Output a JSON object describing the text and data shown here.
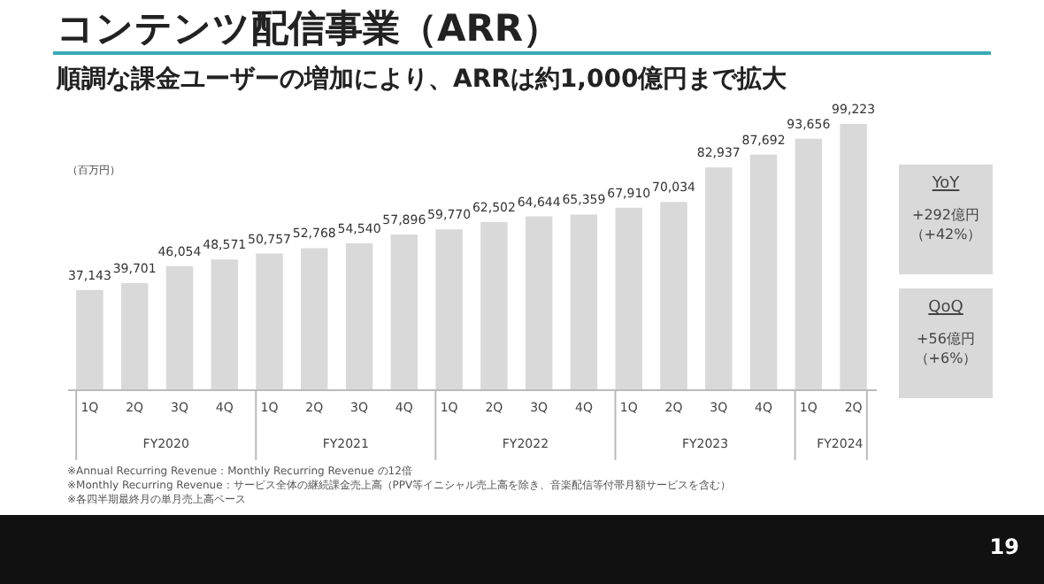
{
  "chart_data": {
    "type": "bar",
    "title": "コンテンツ配信事業（ARR）",
    "subtitle": "順調な課金ユーザーの増加により、ARRは約1,000億円まで拡大",
    "ylabel": "（百万円）",
    "categories": [
      "1Q",
      "2Q",
      "3Q",
      "4Q",
      "1Q",
      "2Q",
      "3Q",
      "4Q",
      "1Q",
      "2Q",
      "3Q",
      "4Q",
      "1Q",
      "2Q",
      "3Q",
      "4Q",
      "1Q",
      "2Q"
    ],
    "values": [
      37143,
      39701,
      46054,
      48571,
      50757,
      52768,
      54540,
      57896,
      59770,
      62502,
      64644,
      65359,
      67910,
      70034,
      82937,
      87692,
      93656,
      99223
    ],
    "color": "#d9d9d9",
    "value_labels": [
      "37,143",
      "39,701",
      "46,054",
      "48,571",
      "50,757",
      "52,768",
      "54,540",
      "57,896",
      "59,770",
      "62,502",
      "64,644",
      "65,359",
      "67,910",
      "70,034",
      "82,937",
      "87,692",
      "93,656",
      "99,223"
    ],
    "annotations": [
      "FY2020",
      "FY2021",
      "FY2022",
      "FY2023",
      "FY2024",
      "YoY",
      "+292億円",
      "（+42%）",
      "QoQ",
      "+56億円",
      "（+6%）",
      "※Annual Recurring Revenue：Monthly Recurring Revenue の12倍",
      "※Monthly Recurring Revenue：サービス全体の継続課金売上高（PPV等イニシャル売上高を除き、音楽配信等付帯月額サービスを含む）",
      "※各四半期最終月の単月売上高ベース",
      "19"
    ]
  }
}
